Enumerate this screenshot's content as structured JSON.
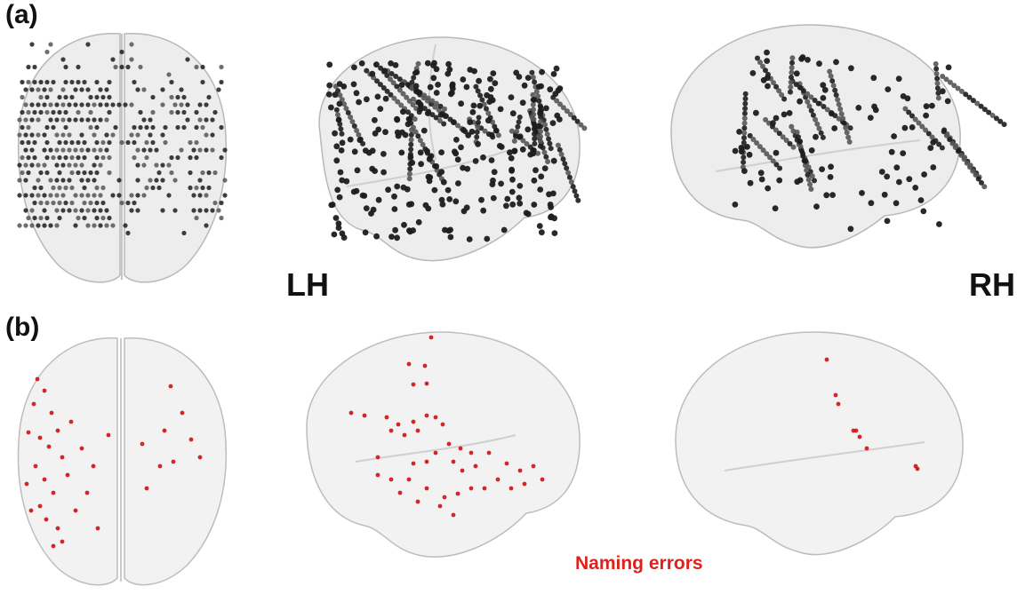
{
  "panels": {
    "a_label": "(a)",
    "b_label": "(b)"
  },
  "hemispheres": {
    "left": "LH",
    "right": "RH"
  },
  "caption": {
    "text": "Naming errors",
    "color": "#e0201a"
  },
  "colors": {
    "electrode_dark": "#1c1c1c",
    "electrode_mid": "#555555",
    "error_marker": "#d11a1a",
    "brain_fill": "#e3e3e3",
    "brain_stroke": "#bdbdbd"
  }
}
